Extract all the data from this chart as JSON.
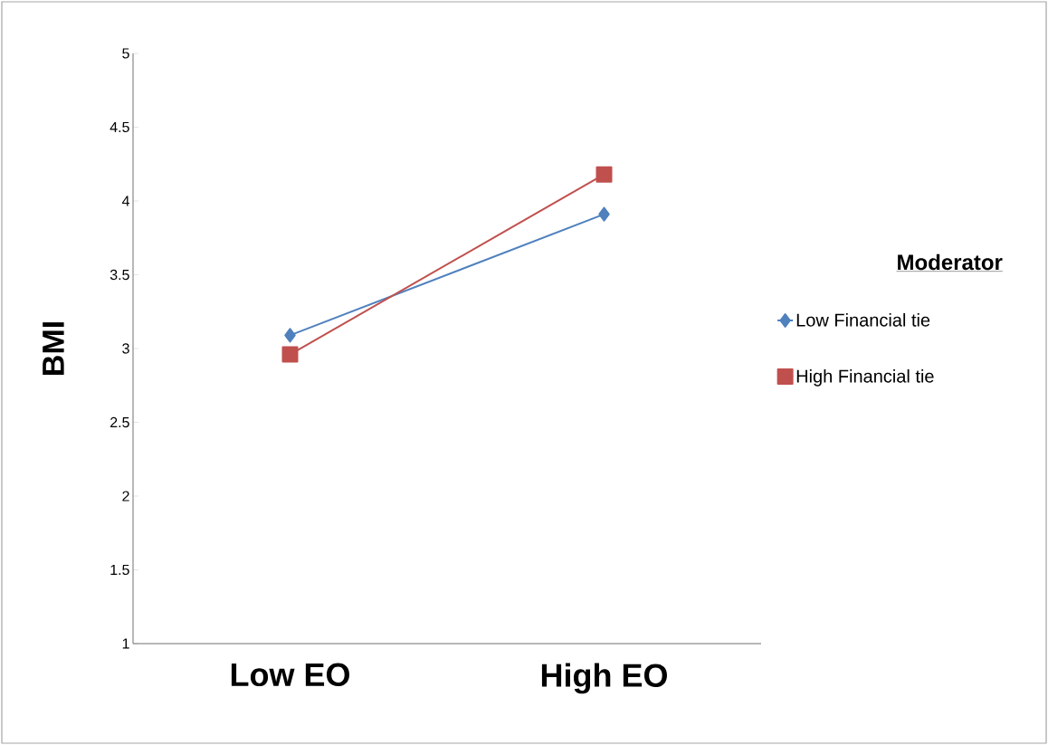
{
  "chart_data": {
    "type": "line",
    "ylabel": "BMI",
    "legend_title": "Moderator",
    "legend": "right",
    "categories": [
      "Low EO",
      "High EO"
    ],
    "series": [
      {
        "name": "Low Financial tie",
        "color": "#4f81bd",
        "marker": "diamond",
        "values": [
          3.09,
          3.91
        ]
      },
      {
        "name": "High Financial tie",
        "color": "#c0504d",
        "marker": "square",
        "values": [
          2.96,
          4.18
        ]
      }
    ],
    "ylim": [
      1,
      5
    ],
    "yticks": [
      1,
      1.5,
      2,
      2.5,
      3,
      3.5,
      4,
      4.5,
      5
    ]
  }
}
